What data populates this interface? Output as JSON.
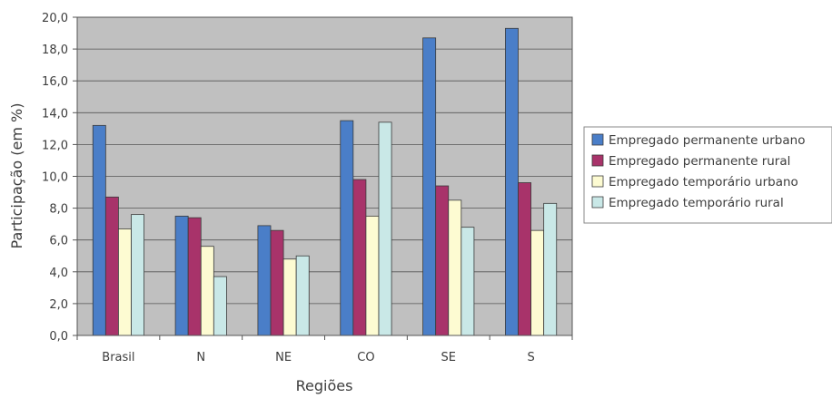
{
  "chart_data": {
    "type": "bar",
    "title": "",
    "xlabel": "Regiões",
    "ylabel": "Participação (em %)",
    "ylim": [
      0,
      20
    ],
    "y_ticks": [
      "0,0",
      "2,0",
      "4,0",
      "6,0",
      "8,0",
      "10,0",
      "12,0",
      "14,0",
      "16,0",
      "18,0",
      "20,0"
    ],
    "grid": true,
    "legend_position": "right",
    "categories": [
      "Brasil",
      "N",
      "NE",
      "CO",
      "SE",
      "S"
    ],
    "series": [
      {
        "name": "Empregado permanente urbano",
        "color": "#4a7ec8",
        "values": [
          13.2,
          7.5,
          6.9,
          13.5,
          18.7,
          19.3
        ]
      },
      {
        "name": "Empregado permanente rural",
        "color": "#a8336a",
        "values": [
          8.7,
          7.4,
          6.6,
          9.8,
          9.4,
          9.6
        ]
      },
      {
        "name": "Empregado temporário urbano",
        "color": "#fdfbd2",
        "values": [
          6.7,
          5.6,
          4.8,
          7.5,
          8.5,
          6.6
        ]
      },
      {
        "name": "Empregado temporário rural",
        "color": "#c9e8e7",
        "values": [
          7.6,
          3.7,
          5.0,
          13.4,
          6.8,
          8.3
        ]
      }
    ]
  }
}
